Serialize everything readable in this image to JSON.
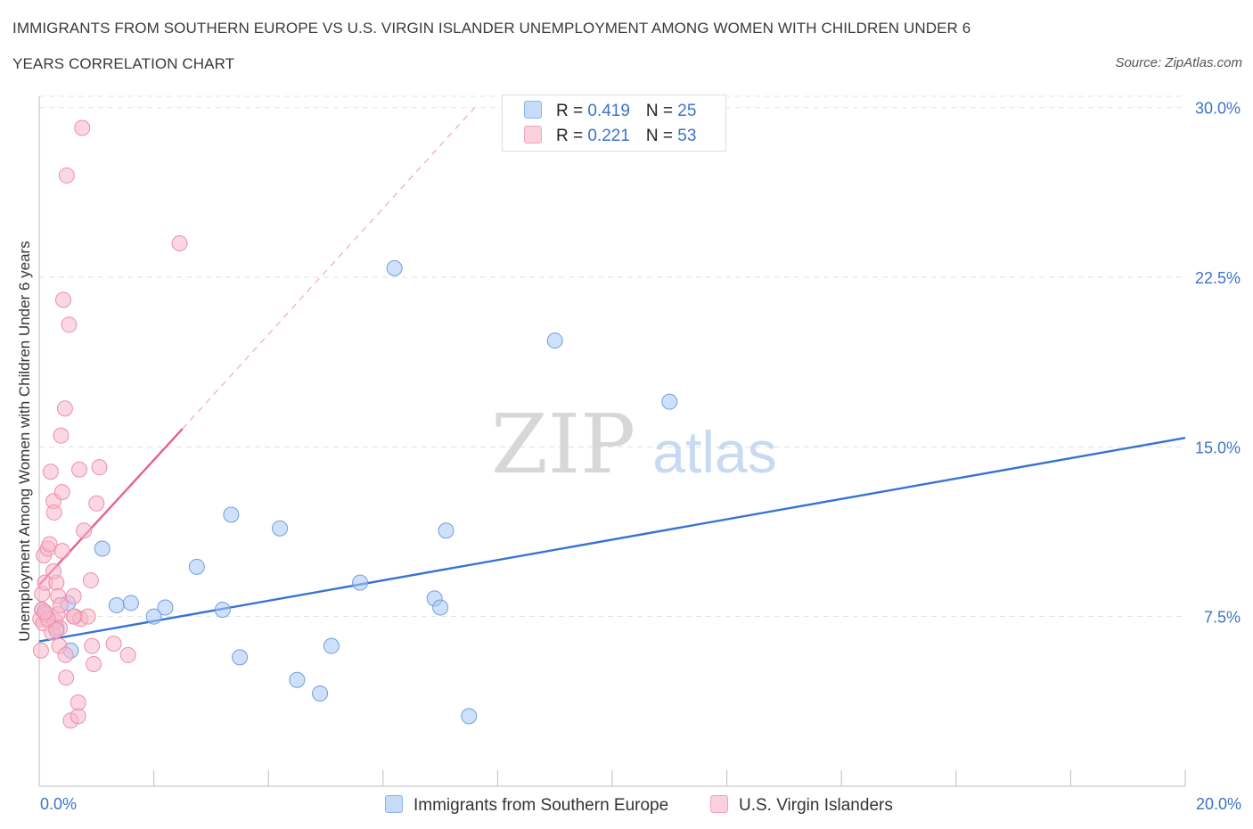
{
  "title_line1": "IMMIGRANTS FROM SOUTHERN EUROPE VS U.S. VIRGIN ISLANDER UNEMPLOYMENT AMONG WOMEN WITH CHILDREN UNDER 6",
  "title_line2": "YEARS CORRELATION CHART",
  "source": "Source: ZipAtlas.com",
  "watermark": {
    "zip": "ZIP",
    "atlas": "atlas"
  },
  "legend": {
    "rows": [
      {
        "r_label": "R = ",
        "r_value": "0.419",
        "n_label": "N = ",
        "n_value": "25",
        "color": "#a8c8f5"
      },
      {
        "r_label": "R = ",
        "r_value": "0.221",
        "n_label": "N = ",
        "n_value": "53",
        "color": "#f7b7cb"
      }
    ]
  },
  "bottom_legend": [
    {
      "label": "Immigrants from Southern Europe",
      "color": "#a8c8f5"
    },
    {
      "label": "U.S. Virgin Islanders",
      "color": "#f7b7cb"
    }
  ],
  "chart_data": {
    "type": "scatter",
    "title": "IMMIGRANTS FROM SOUTHERN EUROPE VS U.S. VIRGIN ISLANDER UNEMPLOYMENT AMONG WOMEN WITH CHILDREN UNDER 6 YEARS CORRELATION CHART",
    "xlabel": "",
    "ylabel": "Unemployment Among Women with Children Under 6 years",
    "xlim": [
      0,
      20
    ],
    "ylim": [
      0,
      30.5
    ],
    "x_tick_labels": [
      {
        "value": 0,
        "label": "0.0%"
      },
      {
        "value": 20,
        "label": "20.0%"
      }
    ],
    "y_tick_labels": [
      {
        "value": 7.5,
        "label": "7.5%"
      },
      {
        "value": 15,
        "label": "15.0%"
      },
      {
        "value": 22.5,
        "label": "22.5%"
      },
      {
        "value": 30,
        "label": "30.0%"
      }
    ],
    "series": [
      {
        "name": "Immigrants from Southern Europe",
        "color": "#a8c8f5",
        "stroke": "#6f9fde",
        "trend_color": "#3674d2",
        "points": [
          [
            0.05,
            7.8
          ],
          [
            0.3,
            7.0
          ],
          [
            0.5,
            8.1
          ],
          [
            0.55,
            6.0
          ],
          [
            1.1,
            10.5
          ],
          [
            1.35,
            8.0
          ],
          [
            1.6,
            8.1
          ],
          [
            2.0,
            7.5
          ],
          [
            2.2,
            7.9
          ],
          [
            2.75,
            9.7
          ],
          [
            3.2,
            7.8
          ],
          [
            3.35,
            12.0
          ],
          [
            3.5,
            5.7
          ],
          [
            4.2,
            11.4
          ],
          [
            4.5,
            4.7
          ],
          [
            4.9,
            4.1
          ],
          [
            5.1,
            6.2
          ],
          [
            5.6,
            9.0
          ],
          [
            6.2,
            22.9
          ],
          [
            6.9,
            8.3
          ],
          [
            7.0,
            7.9
          ],
          [
            7.1,
            11.3
          ],
          [
            7.5,
            3.1
          ],
          [
            9.0,
            19.7
          ],
          [
            11.0,
            17.0
          ]
        ],
        "trend": {
          "x0": 0,
          "y0": 6.4,
          "x1": 20,
          "y1": 15.4
        }
      },
      {
        "name": "U.S. Virgin Islanders",
        "color": "#f7b7cb",
        "stroke": "#ec8fab",
        "trend_color": "#e8608c",
        "points": [
          [
            0.02,
            7.4
          ],
          [
            0.03,
            6.0
          ],
          [
            0.05,
            8.5
          ],
          [
            0.05,
            7.8
          ],
          [
            0.07,
            7.2
          ],
          [
            0.08,
            10.2
          ],
          [
            0.1,
            9.0
          ],
          [
            0.12,
            7.6
          ],
          [
            0.15,
            10.5
          ],
          [
            0.18,
            10.7
          ],
          [
            0.2,
            13.9
          ],
          [
            0.22,
            6.8
          ],
          [
            0.25,
            12.6
          ],
          [
            0.26,
            12.1
          ],
          [
            0.28,
            7.3
          ],
          [
            0.3,
            9.0
          ],
          [
            0.32,
            7.6
          ],
          [
            0.33,
            8.4
          ],
          [
            0.35,
            6.2
          ],
          [
            0.36,
            7.0
          ],
          [
            0.37,
            8.0
          ],
          [
            0.38,
            15.5
          ],
          [
            0.4,
            13.0
          ],
          [
            0.4,
            10.4
          ],
          [
            0.42,
            21.5
          ],
          [
            0.45,
            16.7
          ],
          [
            0.46,
            5.8
          ],
          [
            0.47,
            4.8
          ],
          [
            0.48,
            27.0
          ],
          [
            0.52,
            20.4
          ],
          [
            0.55,
            2.9
          ],
          [
            0.6,
            8.4
          ],
          [
            0.62,
            7.5
          ],
          [
            0.68,
            3.1
          ],
          [
            0.68,
            3.7
          ],
          [
            0.7,
            14.0
          ],
          [
            0.72,
            7.4
          ],
          [
            0.75,
            29.1
          ],
          [
            0.78,
            11.3
          ],
          [
            0.85,
            7.5
          ],
          [
            0.9,
            9.1
          ],
          [
            0.92,
            6.2
          ],
          [
            0.95,
            5.4
          ],
          [
            1.0,
            12.5
          ],
          [
            1.05,
            14.1
          ],
          [
            1.3,
            6.3
          ],
          [
            1.55,
            5.8
          ],
          [
            2.45,
            24.0
          ],
          [
            0.15,
            7.4
          ],
          [
            0.6,
            7.5
          ],
          [
            0.25,
            9.5
          ],
          [
            0.3,
            6.9
          ],
          [
            0.1,
            7.7
          ]
        ],
        "trend": {
          "x0": 0,
          "y0": 8.9,
          "x1": 2.5,
          "y1": 15.8
        },
        "trend_extension": {
          "x0": 2.5,
          "y0": 15.8,
          "x1": 7.6,
          "y1": 30.0
        }
      }
    ]
  }
}
